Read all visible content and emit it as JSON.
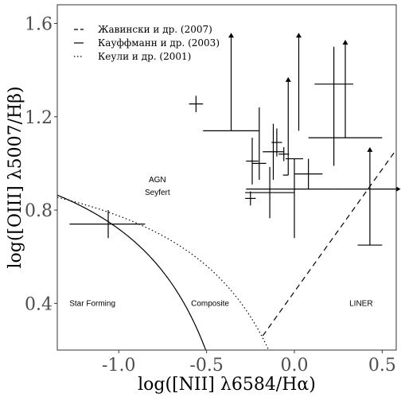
{
  "chart_data": {
    "type": "scatter",
    "xlabel": "log([NII] λ6584/Hα)",
    "ylabel": "log([OIII] λ5007/Hβ)",
    "xlim": [
      -1.35,
      0.58
    ],
    "ylim": [
      0.2,
      1.68
    ],
    "x_ticks": [
      -1.0,
      -0.5,
      0.0,
      0.5
    ],
    "x_tick_labels": [
      "-1.0",
      "-0.5",
      "0.0",
      "0.5"
    ],
    "y_ticks": [
      0.4,
      0.8,
      1.2,
      1.6
    ],
    "y_tick_labels": [
      "0.4",
      "0.8",
      "1.2",
      "1.6"
    ],
    "grid": false,
    "legend_position": "top-left",
    "legend": [
      {
        "label": "Жавински и др. (2007)",
        "style": "dashed"
      },
      {
        "label": "Кауффманн и др. (2003)",
        "style": "solid"
      },
      {
        "label": "Кеули и др. (2001)",
        "style": "dotted"
      }
    ],
    "region_labels": [
      {
        "text": "AGN",
        "x": -0.78,
        "y": 0.93
      },
      {
        "text": "Seyfert",
        "x": -0.78,
        "y": 0.875
      },
      {
        "text": "Star Forming",
        "x": -1.15,
        "y": 0.4
      },
      {
        "text": "Composite",
        "x": -0.48,
        "y": 0.4
      },
      {
        "text": "LINER",
        "x": 0.38,
        "y": 0.4
      }
    ],
    "points": [
      {
        "x": -0.56,
        "y": 1.255,
        "xerr": [
          0.04,
          0.04
        ],
        "yerr": [
          0.035,
          0.035
        ],
        "arrow": null
      },
      {
        "x": -1.06,
        "y": 0.74,
        "xerr": [
          0.22,
          0.21
        ],
        "yerr": [
          0.06,
          0.06
        ],
        "arrow": null
      },
      {
        "x": -0.36,
        "y": 1.14,
        "xerr": [
          0.16,
          0.16
        ],
        "yerr": [
          0.0,
          0.0
        ],
        "arrow": "up"
      },
      {
        "x": -0.2,
        "y": 1.0,
        "xerr": [
          0.04,
          0.04
        ],
        "yerr": [
          0.07,
          0.24
        ],
        "arrow": null
      },
      {
        "x": -0.24,
        "y": 1.01,
        "xerr": [
          0.035,
          0.035
        ],
        "yerr": [
          0.1,
          0.1
        ],
        "arrow": null
      },
      {
        "x": -0.25,
        "y": 0.85,
        "xerr": [
          0.03,
          0.03
        ],
        "yerr": [
          0.03,
          0.03
        ],
        "arrow": null
      },
      {
        "x": -0.14,
        "y": 0.875,
        "xerr": [
          0.14,
          0.14
        ],
        "yerr": [
          0.11,
          0.11
        ],
        "arrow": null
      },
      {
        "x": -0.12,
        "y": 1.05,
        "xerr": [
          0.06,
          0.06
        ],
        "yerr": [
          0.12,
          0.12
        ],
        "arrow": null
      },
      {
        "x": -0.1,
        "y": 1.09,
        "xerr": [
          0.03,
          0.03
        ],
        "yerr": [
          0.06,
          0.06
        ],
        "arrow": null
      },
      {
        "x": -0.06,
        "y": 1.04,
        "xerr": [
          0.03,
          0.03
        ],
        "yerr": [
          0.03,
          0.03
        ],
        "arrow": null
      },
      {
        "x": -0.035,
        "y": 0.95,
        "xerr": [
          0.03,
          0.0
        ],
        "yerr": [
          0.0,
          0.0
        ],
        "arrow": "up"
      },
      {
        "x": 0.0,
        "y": 1.02,
        "xerr": [
          0.05,
          0.05
        ],
        "yerr": [
          0.34,
          0.0
        ],
        "arrow": null
      },
      {
        "x": 0.025,
        "y": 1.14,
        "xerr": [
          0.0,
          0.0
        ],
        "yerr": [
          0.0,
          0.0
        ],
        "arrow": "up"
      },
      {
        "x": 0.08,
        "y": 0.955,
        "xerr": [
          0.08,
          0.08
        ],
        "yerr": [
          0.065,
          0.065
        ],
        "arrow": null
      },
      {
        "x": 0.225,
        "y": 0.89,
        "xerr": [
          0.5,
          0.0
        ],
        "yerr": [
          0.0,
          0.0
        ],
        "arrow": "right"
      },
      {
        "x": 0.225,
        "y": 1.34,
        "xerr": [
          0.11,
          0.11
        ],
        "yerr": [
          0.35,
          0.16
        ],
        "arrow": null
      },
      {
        "x": 0.29,
        "y": 1.11,
        "xerr": [
          0.21,
          0.21
        ],
        "yerr": [
          0.0,
          0.0
        ],
        "arrow": "up"
      },
      {
        "x": 0.43,
        "y": 0.65,
        "xerr": [
          0.07,
          0.07
        ],
        "yerr": [
          0.0,
          0.0
        ],
        "arrow": "up"
      }
    ],
    "lines": {
      "kauffmann2003": {
        "style": "solid",
        "formula": "0.61/(x-0.05)+1.3",
        "x_range": [
          -1.35,
          -0.485
        ]
      },
      "kewley2001": {
        "style": "dotted",
        "formula": "0.61/(x-0.47)+1.19",
        "x_range": [
          -1.35,
          -0.14
        ]
      },
      "schawinski2007": {
        "style": "dashed",
        "formula": "1.05*x+0.45",
        "x_range": [
          -0.18,
          0.58
        ]
      }
    }
  }
}
